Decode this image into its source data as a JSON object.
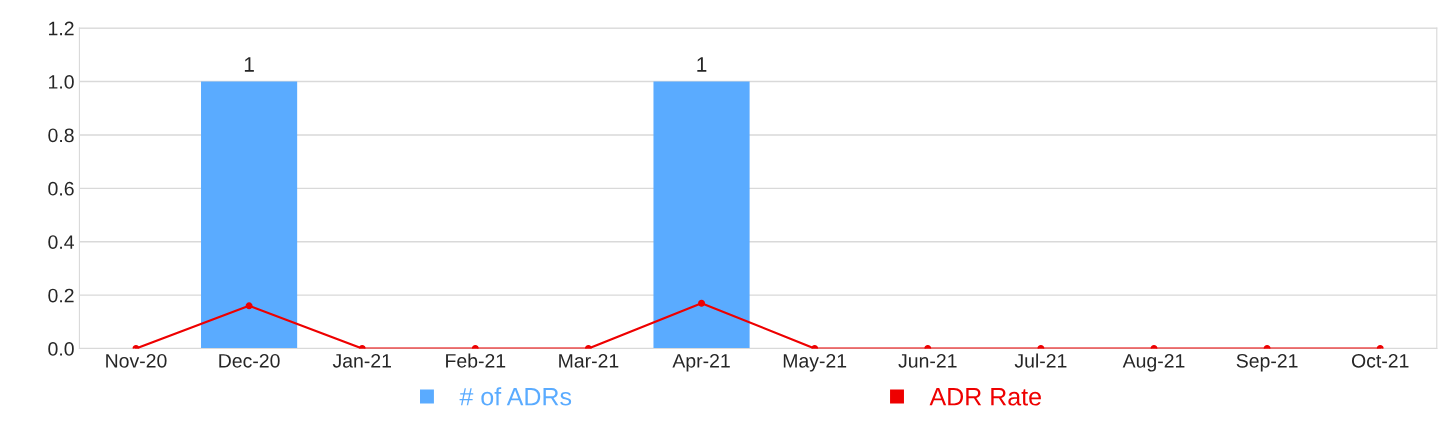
{
  "chart_data": {
    "type": "bar",
    "categories": [
      "Nov-20",
      "Dec-20",
      "Jan-21",
      "Feb-21",
      "Mar-21",
      "Apr-21",
      "May-21",
      "Jun-21",
      "Jul-21",
      "Aug-21",
      "Sep-21",
      "Oct-21"
    ],
    "series": [
      {
        "name": "# of ADRs",
        "color": "#5aabff",
        "values": [
          0,
          1,
          0,
          0,
          0,
          1,
          0,
          0,
          0,
          0,
          0,
          0
        ],
        "value_labels": [
          null,
          "1",
          null,
          null,
          null,
          "1",
          null,
          null,
          null,
          null,
          null,
          null
        ]
      },
      {
        "name": "ADR Rate",
        "type": "line",
        "color": "#ee0000",
        "marker": "circle",
        "values": [
          0,
          0.16,
          0,
          0,
          0,
          0.17,
          0,
          0,
          0,
          0,
          0,
          0
        ]
      }
    ],
    "ylim": [
      0,
      1.2
    ],
    "yticks": [
      {
        "value": 0,
        "label": "0.0"
      },
      {
        "value": 0.2,
        "label": "0.2"
      },
      {
        "value": 0.4,
        "label": "0.4"
      },
      {
        "value": 0.6,
        "label": "0.6"
      },
      {
        "value": 0.8,
        "label": "0.8"
      },
      {
        "value": 1.0,
        "label": "1.0"
      },
      {
        "value": 1.2,
        "label": "1.2"
      }
    ],
    "grid": "y",
    "legend": "bottom"
  }
}
